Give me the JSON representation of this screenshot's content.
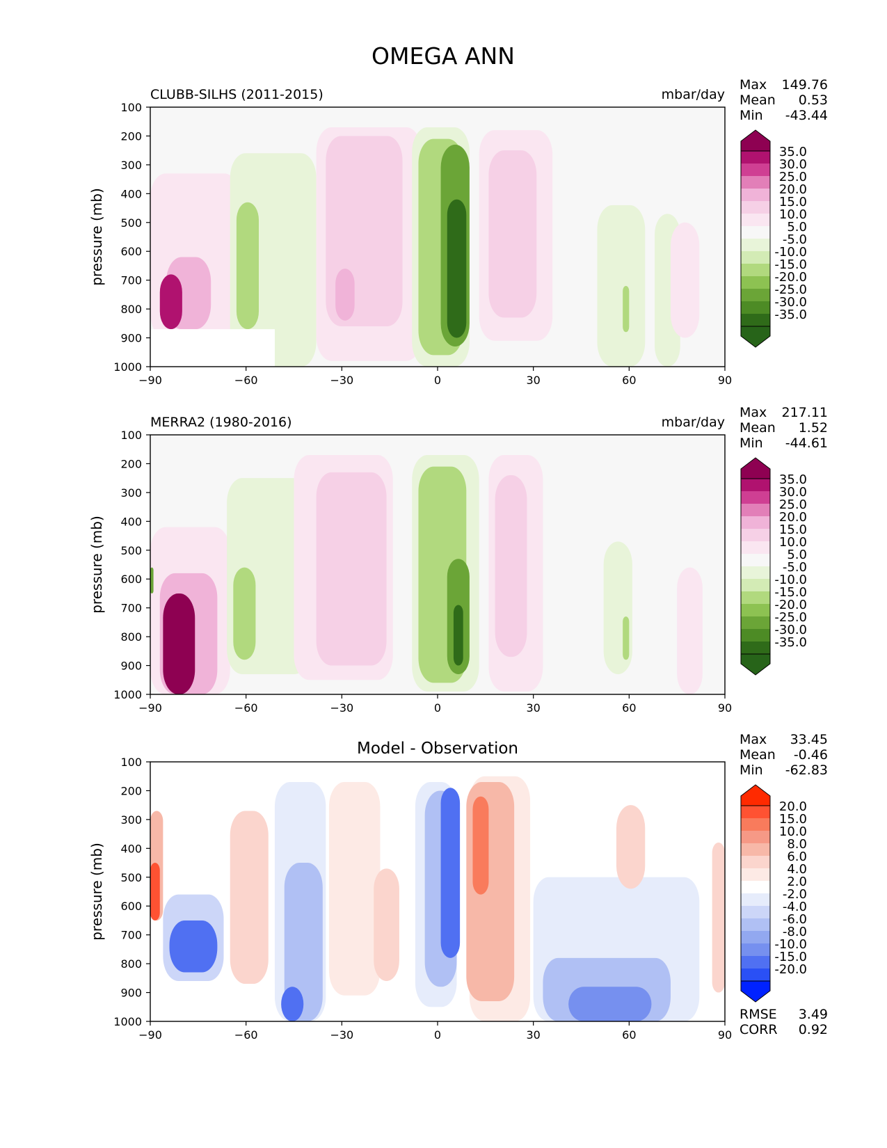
{
  "title": "OMEGA ANN",
  "chart_data": [
    {
      "type": "contour",
      "title": "CLUBB-SILHS (2011-2015)",
      "units": "mbar/day",
      "ylabel": "pressure (mb)",
      "xlim": [
        -90,
        90
      ],
      "ylim": [
        1000,
        100
      ],
      "x_ticks": [
        "−90",
        "−60",
        "−30",
        "0",
        "30",
        "60",
        "90"
      ],
      "y_ticks": [
        "100",
        "200",
        "300",
        "400",
        "500",
        "600",
        "700",
        "800",
        "900",
        "1000"
      ],
      "stats": [
        {
          "label": "Max",
          "value": "149.76"
        },
        {
          "label": "Mean",
          "value": "0.53"
        },
        {
          "label": "Min",
          "value": "-43.44"
        }
      ],
      "colorbar": {
        "labels": [
          "35.0",
          "30.0",
          "25.0",
          "20.0",
          "15.0",
          "10.0",
          "5.0",
          "-5.0",
          "-10.0",
          "-15.0",
          "-20.0",
          "-25.0",
          "-30.0",
          "-35.0"
        ],
        "colors": [
          "#8e0152",
          "#b0126f",
          "#cf3f93",
          "#e27fb8",
          "#f0b3d8",
          "#f6d0e6",
          "#fae6f1",
          "#f7f7f7",
          "#e8f4d9",
          "#d3ebb5",
          "#b1d97e",
          "#8dc252",
          "#6ba537",
          "#4d8b25",
          "#2f6b19",
          "#276419"
        ]
      },
      "regions": [
        {
          "kind": "pink",
          "level": 1,
          "x": -90,
          "w": 28,
          "top": 330,
          "bot": 900
        },
        {
          "kind": "pink",
          "level": 3,
          "x": -85,
          "w": 14,
          "top": 620,
          "bot": 870
        },
        {
          "kind": "pink",
          "level": 6,
          "x": -87,
          "w": 7,
          "top": 680,
          "bot": 870
        },
        {
          "kind": "green",
          "level": 1,
          "x": -65,
          "w": 27,
          "top": 260,
          "bot": 1000
        },
        {
          "kind": "green",
          "level": 3,
          "x": -63,
          "w": 7,
          "top": 430,
          "bot": 870
        },
        {
          "kind": "green",
          "level": 1,
          "x": 68,
          "w": 8,
          "top": 470,
          "bot": 1000
        },
        {
          "kind": "pink",
          "level": 1,
          "x": -38,
          "w": 33,
          "top": 170,
          "bot": 980
        },
        {
          "kind": "pink",
          "level": 2,
          "x": -35,
          "w": 24,
          "top": 200,
          "bot": 860
        },
        {
          "kind": "pink",
          "level": 3,
          "x": -32,
          "w": 6,
          "top": 660,
          "bot": 840
        },
        {
          "kind": "green",
          "level": 1,
          "x": -8,
          "w": 18,
          "top": 170,
          "bot": 1000
        },
        {
          "kind": "green",
          "level": 3,
          "x": -6,
          "w": 14,
          "top": 210,
          "bot": 960
        },
        {
          "kind": "green",
          "level": 5,
          "x": 1,
          "w": 9,
          "top": 230,
          "bot": 930
        },
        {
          "kind": "green",
          "level": 7,
          "x": 3,
          "w": 6,
          "top": 420,
          "bot": 900
        },
        {
          "kind": "pink",
          "level": 1,
          "x": 13,
          "w": 23,
          "top": 180,
          "bot": 910
        },
        {
          "kind": "pink",
          "level": 2,
          "x": 16,
          "w": 15,
          "top": 250,
          "bot": 830
        },
        {
          "kind": "green",
          "level": 1,
          "x": 50,
          "w": 15,
          "top": 440,
          "bot": 1000
        },
        {
          "kind": "green",
          "level": 3,
          "x": 58,
          "w": 2,
          "top": 720,
          "bot": 880
        },
        {
          "kind": "pink",
          "level": 1,
          "x": 73,
          "w": 9,
          "top": 500,
          "bot": 900
        }
      ],
      "masked": [
        {
          "x": -90,
          "w": 39,
          "top": 870,
          "bot": 1000
        }
      ]
    },
    {
      "type": "contour",
      "title": "MERRA2 (1980-2016)",
      "units": "mbar/day",
      "ylabel": "pressure (mb)",
      "xlim": [
        -90,
        90
      ],
      "ylim": [
        1000,
        100
      ],
      "x_ticks": [
        "−90",
        "−60",
        "−30",
        "0",
        "30",
        "60",
        "90"
      ],
      "y_ticks": [
        "100",
        "200",
        "300",
        "400",
        "500",
        "600",
        "700",
        "800",
        "900",
        "1000"
      ],
      "stats": [
        {
          "label": "Max",
          "value": "217.11"
        },
        {
          "label": "Mean",
          "value": "1.52"
        },
        {
          "label": "Min",
          "value": "-44.61"
        }
      ],
      "colorbar": {
        "labels": [
          "35.0",
          "30.0",
          "25.0",
          "20.0",
          "15.0",
          "10.0",
          "5.0",
          "-5.0",
          "-10.0",
          "-15.0",
          "-20.0",
          "-25.0",
          "-30.0",
          "-35.0"
        ],
        "colors": [
          "#8e0152",
          "#b0126f",
          "#cf3f93",
          "#e27fb8",
          "#f0b3d8",
          "#f6d0e6",
          "#fae6f1",
          "#f7f7f7",
          "#e8f4d9",
          "#d3ebb5",
          "#b1d97e",
          "#8dc252",
          "#6ba537",
          "#4d8b25",
          "#2f6b19",
          "#276419"
        ]
      },
      "regions": [
        {
          "kind": "pink",
          "level": 1,
          "x": -90,
          "w": 25,
          "top": 420,
          "bot": 1000
        },
        {
          "kind": "pink",
          "level": 3,
          "x": -87,
          "w": 18,
          "top": 580,
          "bot": 1000
        },
        {
          "kind": "pink",
          "level": 7,
          "x": -86,
          "w": 10,
          "top": 650,
          "bot": 1000
        },
        {
          "kind": "green",
          "level": 5,
          "x": -90,
          "w": 1,
          "top": 560,
          "bot": 650
        },
        {
          "kind": "green",
          "level": 1,
          "x": -66,
          "w": 26,
          "top": 250,
          "bot": 930
        },
        {
          "kind": "green",
          "level": 3,
          "x": -64,
          "w": 7,
          "top": 560,
          "bot": 880
        },
        {
          "kind": "pink",
          "level": 1,
          "x": -45,
          "w": 31,
          "top": 170,
          "bot": 950
        },
        {
          "kind": "pink",
          "level": 2,
          "x": -38,
          "w": 22,
          "top": 230,
          "bot": 900
        },
        {
          "kind": "green",
          "level": 1,
          "x": -8,
          "w": 21,
          "top": 170,
          "bot": 990
        },
        {
          "kind": "green",
          "level": 3,
          "x": -6,
          "w": 15,
          "top": 210,
          "bot": 960
        },
        {
          "kind": "green",
          "level": 5,
          "x": 3,
          "w": 7,
          "top": 530,
          "bot": 930
        },
        {
          "kind": "green",
          "level": 7,
          "x": 5,
          "w": 3,
          "top": 690,
          "bot": 900
        },
        {
          "kind": "pink",
          "level": 1,
          "x": 16,
          "w": 17,
          "top": 170,
          "bot": 990
        },
        {
          "kind": "pink",
          "level": 2,
          "x": 18,
          "w": 10,
          "top": 240,
          "bot": 870
        },
        {
          "kind": "green",
          "level": 1,
          "x": 52,
          "w": 9,
          "top": 470,
          "bot": 930
        },
        {
          "kind": "green",
          "level": 3,
          "x": 58,
          "w": 2,
          "top": 730,
          "bot": 880
        },
        {
          "kind": "pink",
          "level": 1,
          "x": 75,
          "w": 8,
          "top": 560,
          "bot": 1000
        }
      ],
      "masked": []
    },
    {
      "type": "contour",
      "title": "Model - Observation",
      "ylabel": "pressure (mb)",
      "xlim": [
        -90,
        90
      ],
      "ylim": [
        1000,
        100
      ],
      "x_ticks": [
        "−90",
        "−60",
        "−30",
        "0",
        "30",
        "60",
        "90"
      ],
      "y_ticks": [
        "100",
        "200",
        "300",
        "400",
        "500",
        "600",
        "700",
        "800",
        "900",
        "1000"
      ],
      "stats": [
        {
          "label": "Max",
          "value": "33.45"
        },
        {
          "label": "Mean",
          "value": "-0.46"
        },
        {
          "label": "Min",
          "value": "-62.83"
        }
      ],
      "extra_stats": [
        {
          "label": "RMSE",
          "value": "3.49"
        },
        {
          "label": "CORR",
          "value": "0.92"
        }
      ],
      "colorbar": {
        "labels": [
          "20.0",
          "15.0",
          "10.0",
          "8.0",
          "6.0",
          "4.0",
          "2.0",
          "-2.0",
          "-4.0",
          "-6.0",
          "-8.0",
          "-10.0",
          "-15.0",
          "-20.0"
        ],
        "colors": [
          "#ff2a00",
          "#ff5232",
          "#f97b5c",
          "#f69986",
          "#f7b8a8",
          "#fbd5cd",
          "#fdeae5",
          "#ffffff",
          "#e6ecfb",
          "#ccd6f8",
          "#b0c0f4",
          "#92a8f0",
          "#7690ef",
          "#5070f2",
          "#2a50f5",
          "#0022ff"
        ]
      },
      "regions": [
        {
          "kind": "red",
          "level": 3,
          "x": -90,
          "w": 4,
          "top": 270,
          "bot": 650
        },
        {
          "kind": "red",
          "level": 6,
          "x": -90,
          "w": 3,
          "top": 450,
          "bot": 650
        },
        {
          "kind": "blue",
          "level": 2,
          "x": -86,
          "w": 19,
          "top": 560,
          "bot": 860
        },
        {
          "kind": "blue",
          "level": 6,
          "x": -84,
          "w": 15,
          "top": 650,
          "bot": 830
        },
        {
          "kind": "red",
          "level": 2,
          "x": -65,
          "w": 12,
          "top": 270,
          "bot": 870
        },
        {
          "kind": "blue",
          "level": 1,
          "x": -51,
          "w": 16,
          "top": 170,
          "bot": 1000
        },
        {
          "kind": "blue",
          "level": 3,
          "x": -48,
          "w": 12,
          "top": 450,
          "bot": 1000
        },
        {
          "kind": "blue",
          "level": 6,
          "x": -49,
          "w": 7,
          "top": 880,
          "bot": 1000
        },
        {
          "kind": "red",
          "level": 1,
          "x": -34,
          "w": 16,
          "top": 170,
          "bot": 910
        },
        {
          "kind": "red",
          "level": 2,
          "x": -20,
          "w": 8,
          "top": 470,
          "bot": 860
        },
        {
          "kind": "blue",
          "level": 1,
          "x": -7,
          "w": 13,
          "top": 170,
          "bot": 950
        },
        {
          "kind": "blue",
          "level": 3,
          "x": -4,
          "w": 10,
          "top": 200,
          "bot": 880
        },
        {
          "kind": "blue",
          "level": 6,
          "x": 1,
          "w": 6,
          "top": 190,
          "bot": 780
        },
        {
          "kind": "red",
          "level": 1,
          "x": 10,
          "w": 19,
          "top": 150,
          "bot": 1000
        },
        {
          "kind": "red",
          "level": 3,
          "x": 9,
          "w": 15,
          "top": 170,
          "bot": 930
        },
        {
          "kind": "red",
          "level": 5,
          "x": 11,
          "w": 5,
          "top": 220,
          "bot": 560
        },
        {
          "kind": "blue",
          "level": 1,
          "x": 30,
          "w": 52,
          "top": 500,
          "bot": 1000
        },
        {
          "kind": "blue",
          "level": 3,
          "x": 33,
          "w": 40,
          "top": 780,
          "bot": 1000
        },
        {
          "kind": "blue",
          "level": 5,
          "x": 41,
          "w": 26,
          "top": 880,
          "bot": 1000
        },
        {
          "kind": "red",
          "level": 2,
          "x": 56,
          "w": 9,
          "top": 250,
          "bot": 540
        },
        {
          "kind": "red",
          "level": 2,
          "x": 86,
          "w": 4,
          "top": 380,
          "bot": 900
        }
      ],
      "masked": [
        {
          "x": -90,
          "w": 39,
          "top": 870,
          "bot": 1000
        }
      ]
    }
  ]
}
